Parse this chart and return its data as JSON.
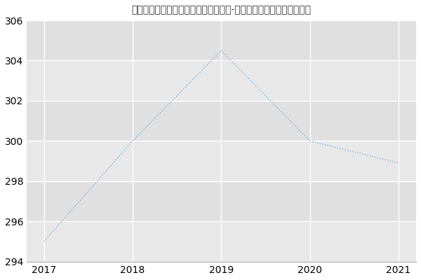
{
  "title": "南通大学医学院、药学院医学信息学（-历年复试）研究生录取分数线",
  "x": [
    2017,
    2018,
    2019,
    2020,
    2021
  ],
  "y": [
    295,
    300,
    304.5,
    300,
    298.9
  ],
  "line_color": "#7aaed6",
  "background_color": "#ffffff",
  "plot_bg_color": "#e8e8e8",
  "band_color_light": "#e8e8e8",
  "band_color_dark": "#e0e0e0",
  "ylim": [
    294,
    306
  ],
  "xlim": [
    2016.8,
    2021.2
  ],
  "yticks": [
    294,
    296,
    298,
    300,
    302,
    304,
    306
  ],
  "xticks": [
    2017,
    2018,
    2019,
    2020,
    2021
  ],
  "grid_color": "#ffffff",
  "title_fontsize": 12,
  "tick_fontsize": 10
}
